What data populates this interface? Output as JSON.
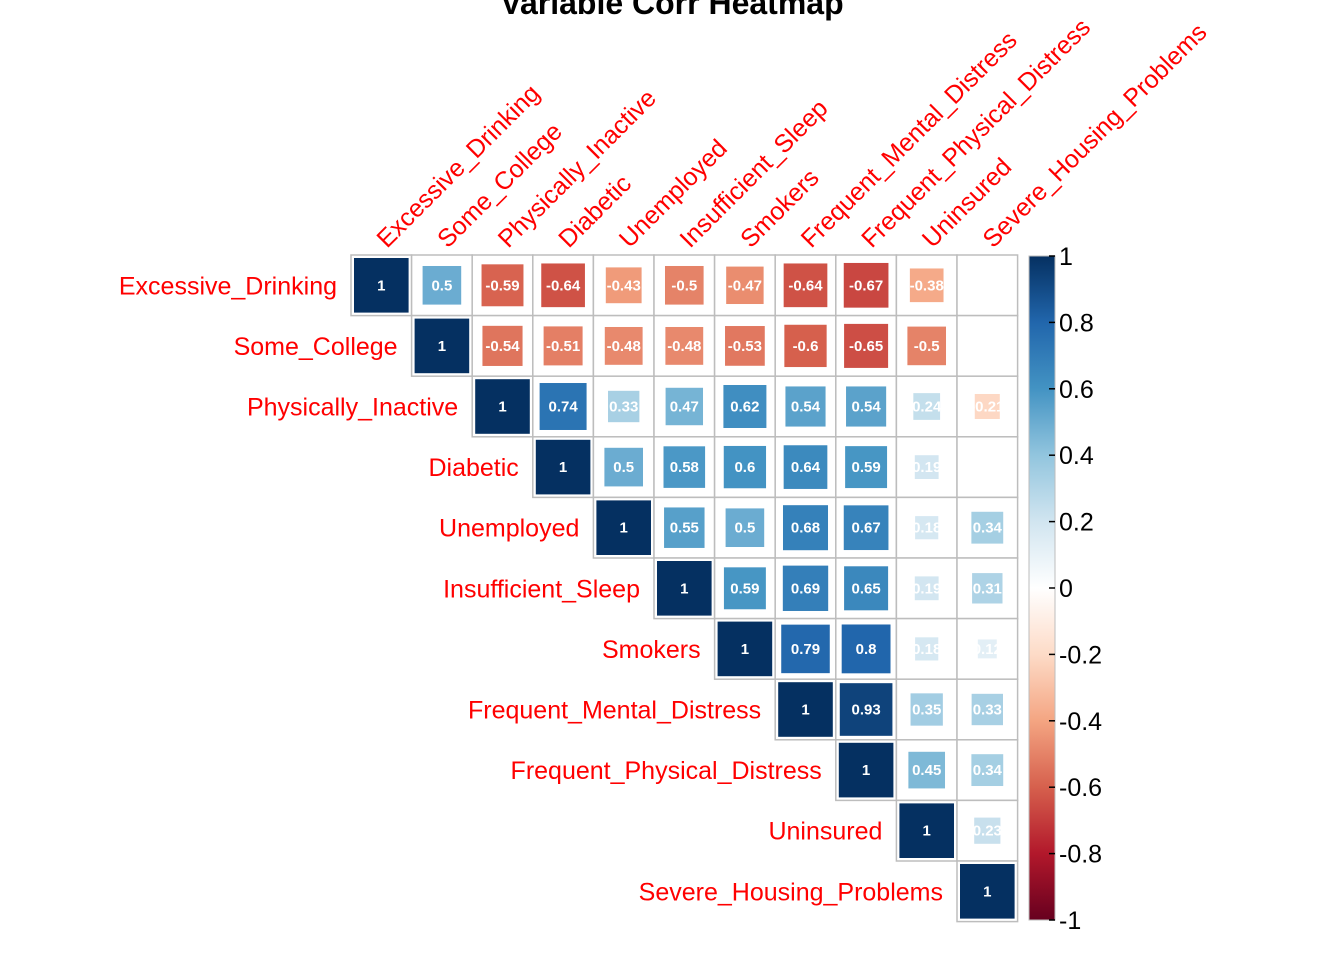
{
  "chart_data": {
    "type": "heatmap",
    "title": "Variable Corr Heatmap",
    "layout": "upper-triangle",
    "variables": [
      "Excessive_Drinking",
      "Some_College",
      "Physically_Inactive",
      "Diabetic",
      "Unemployed",
      "Insufficient_Sleep",
      "Smokers",
      "Frequent_Mental_Distress",
      "Frequent_Physical_Distress",
      "Uninsured",
      "Severe_Housing_Problems"
    ],
    "matrix": [
      [
        1,
        0.5,
        -0.59,
        -0.64,
        -0.43,
        -0.5,
        -0.47,
        -0.64,
        -0.67,
        -0.38,
        0
      ],
      [
        0.5,
        1,
        -0.54,
        -0.51,
        -0.48,
        -0.48,
        -0.53,
        -0.6,
        -0.65,
        -0.5,
        0.0
      ],
      [
        -0.59,
        -0.54,
        1,
        0.74,
        0.33,
        0.47,
        0.62,
        0.54,
        0.54,
        0.24,
        -0.21
      ],
      [
        -0.64,
        -0.51,
        0.74,
        1,
        0.5,
        0.58,
        0.6,
        0.64,
        0.59,
        0.19,
        0.0
      ],
      [
        -0.43,
        -0.48,
        0.33,
        0.5,
        1,
        0.55,
        0.5,
        0.68,
        0.67,
        0.18,
        0.34
      ],
      [
        -0.5,
        -0.48,
        0.47,
        0.58,
        0.55,
        1,
        0.59,
        0.69,
        0.65,
        0.19,
        0.31
      ],
      [
        -0.47,
        -0.53,
        0.62,
        0.6,
        0.5,
        0.59,
        1,
        0.79,
        0.8,
        0.18,
        0.12
      ],
      [
        -0.64,
        -0.6,
        0.54,
        0.64,
        0.68,
        0.69,
        0.79,
        1,
        0.93,
        0.35,
        0.33
      ],
      [
        -0.67,
        -0.65,
        0.54,
        0.59,
        0.67,
        0.65,
        0.8,
        0.93,
        1,
        0.45,
        0.34
      ],
      [
        -0.38,
        -0.5,
        0.24,
        0.19,
        0.18,
        0.19,
        0.18,
        0.35,
        0.45,
        1,
        0.23
      ],
      [
        0,
        0.0,
        -0.21,
        0.0,
        0.34,
        0.31,
        0.12,
        0.33,
        0.34,
        0.23,
        1
      ]
    ],
    "colorbar": {
      "min": -1,
      "max": 1,
      "ticks": [
        "1",
        "0.8",
        "0.6",
        "0.4",
        "0.2",
        "0",
        "-0.2",
        "-0.4",
        "-0.6",
        "-0.8",
        "-1"
      ],
      "tick_values": [
        1,
        0.8,
        0.6,
        0.4,
        0.2,
        0,
        -0.2,
        -0.4,
        -0.6,
        -0.8,
        -1
      ],
      "colors_low_to_high": [
        "#67001F",
        "#B2182B",
        "#D6604D",
        "#F4A582",
        "#FDDBC7",
        "#FFFFFF",
        "#D1E5F0",
        "#92C5DE",
        "#4393C3",
        "#2166AC",
        "#053061"
      ]
    },
    "label_color": "#ff0000",
    "grid": true
  }
}
